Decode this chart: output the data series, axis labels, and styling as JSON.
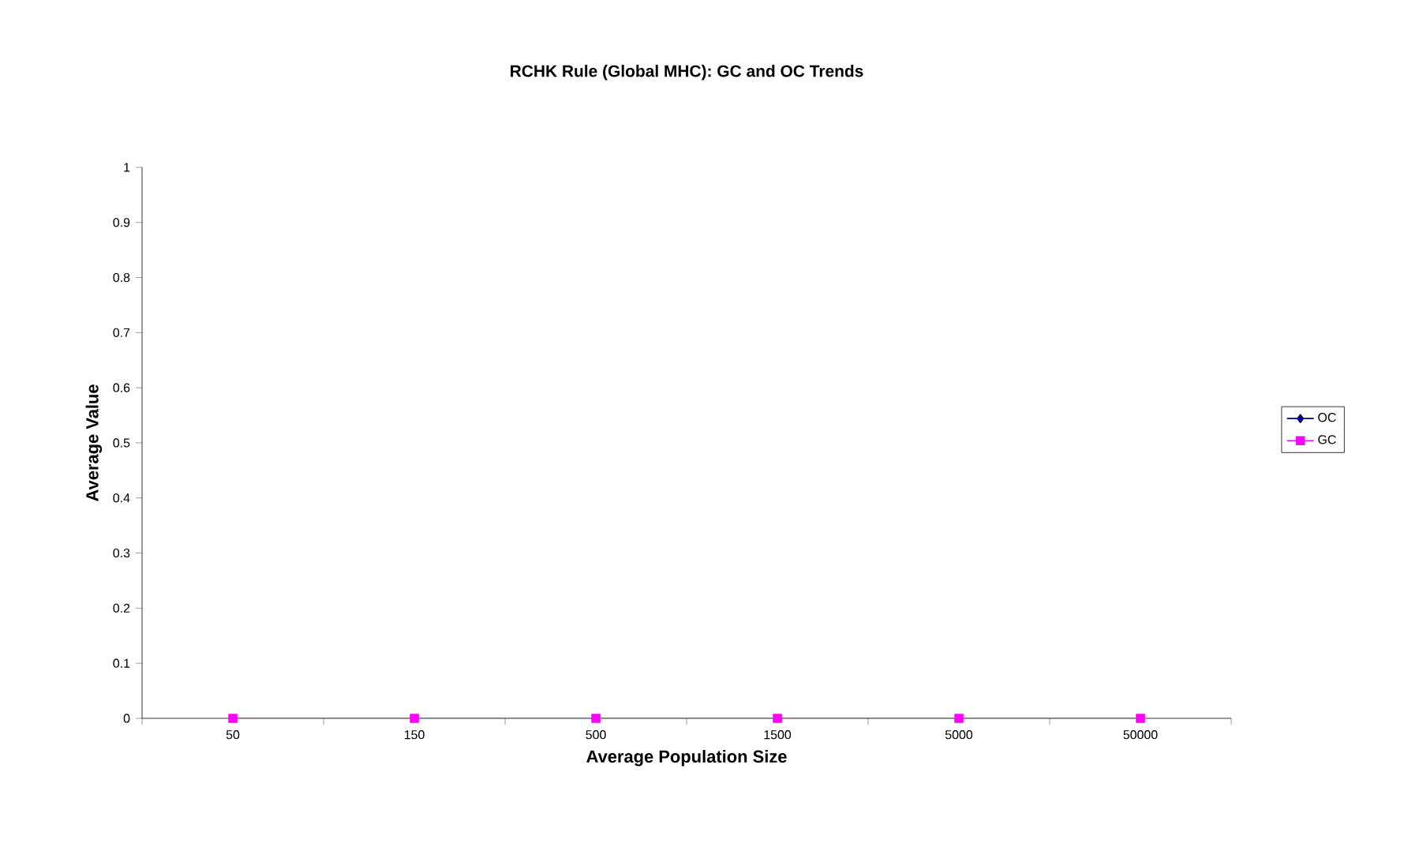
{
  "chart_data": {
    "type": "line",
    "title": "RCHK Rule (Global MHC): GC and OC Trends",
    "xlabel": "Average Population Size",
    "ylabel": "Average Value",
    "categories": [
      "50",
      "150",
      "500",
      "1500",
      "5000",
      "50000"
    ],
    "series": [
      {
        "name": "OC",
        "color": "#000080",
        "marker": "diamond",
        "values": [
          null,
          null,
          null,
          null,
          null,
          null
        ]
      },
      {
        "name": "GC",
        "color": "#ff00ff",
        "marker": "square",
        "values": [
          0,
          0,
          0,
          0,
          0,
          0
        ]
      }
    ],
    "ylim": [
      0,
      1
    ],
    "yticks": [
      0,
      0.1,
      0.2,
      0.3,
      0.4,
      0.5,
      0.6,
      0.7,
      0.8,
      0.9,
      1
    ],
    "grid": false,
    "legend": "right"
  }
}
